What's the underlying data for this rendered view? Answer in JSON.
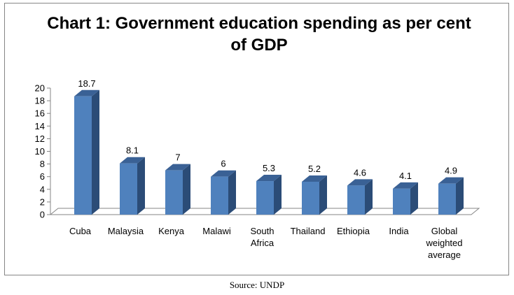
{
  "chart_data": {
    "type": "bar",
    "title": "Chart 1: Government education spending as per cent of GDP",
    "categories": [
      "Cuba",
      "Malaysia",
      "Kenya",
      "Malawi",
      "South Africa",
      "Thailand",
      "Ethiopia",
      "India",
      "Global weighted average"
    ],
    "category_lines": [
      [
        "Cuba"
      ],
      [
        "Malaysia"
      ],
      [
        "Kenya"
      ],
      [
        "Malawi"
      ],
      [
        "South",
        "Africa"
      ],
      [
        "Thailand"
      ],
      [
        "Ethiopia"
      ],
      [
        "India"
      ],
      [
        "Global",
        "weighted",
        "average"
      ]
    ],
    "values": [
      18.7,
      8.1,
      7,
      6,
      5.3,
      5.2,
      4.6,
      4.1,
      4.9
    ],
    "data_labels": [
      "18.7",
      "8.1",
      "7",
      "6",
      "5.3",
      "5.2",
      "4.6",
      "4.1",
      "4.9"
    ],
    "xlabel": "",
    "ylabel": "",
    "ylim": [
      0,
      20
    ],
    "yticks": [
      "0",
      "2",
      "4",
      "6",
      "8",
      "10",
      "12",
      "14",
      "16",
      "18",
      "20"
    ],
    "style": "3d-column",
    "legend": "none",
    "grid": false,
    "colors": {
      "bar_front": "#4f81bd",
      "bar_side": "#2b4c77",
      "bar_top": "#3a6195"
    }
  },
  "source": "Source: UNDP"
}
